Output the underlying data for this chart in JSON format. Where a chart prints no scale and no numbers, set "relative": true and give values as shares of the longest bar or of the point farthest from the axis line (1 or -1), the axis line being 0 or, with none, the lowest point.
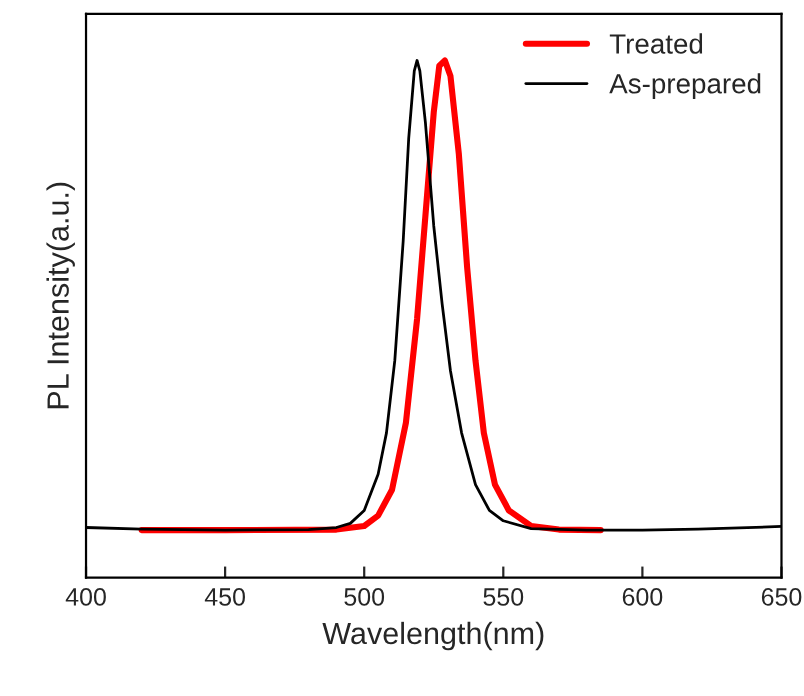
{
  "chart_data": {
    "type": "line",
    "relative": true,
    "xlabel": "Wavelength(nm)",
    "ylabel": "PL Intensity(a.u.)",
    "xlim": [
      400,
      650
    ],
    "xticks": [
      400,
      450,
      500,
      550,
      600,
      650
    ],
    "grid": false,
    "legend": "top right",
    "line_style": "solid",
    "marker": "none",
    "tick_labels": "x",
    "series": [
      {
        "name": "Treated",
        "color": "#ff0000",
        "x": [
          420,
          450,
          490,
          500,
          505,
          510,
          515,
          519,
          522,
          525,
          527,
          529,
          531,
          534,
          537,
          540,
          543,
          547,
          552,
          560,
          570,
          585
        ],
        "values": [
          0.092,
          0.092,
          0.093,
          0.1,
          0.12,
          0.17,
          0.3,
          0.5,
          0.7,
          0.9,
          0.99,
          1.0,
          0.97,
          0.82,
          0.6,
          0.42,
          0.28,
          0.18,
          0.13,
          0.1,
          0.093,
          0.092
        ]
      },
      {
        "name": "As-prepared",
        "color": "#000000",
        "x": [
          400,
          420,
          450,
          480,
          490,
          495,
          500,
          505,
          508,
          511,
          514,
          516,
          518,
          519,
          520,
          522,
          525,
          528,
          531,
          535,
          540,
          545,
          550,
          560,
          580,
          600,
          620,
          650
        ],
        "values": [
          0.097,
          0.094,
          0.092,
          0.093,
          0.097,
          0.105,
          0.13,
          0.2,
          0.28,
          0.42,
          0.65,
          0.85,
          0.98,
          1.0,
          0.98,
          0.88,
          0.68,
          0.53,
          0.4,
          0.28,
          0.18,
          0.13,
          0.11,
          0.095,
          0.092,
          0.092,
          0.094,
          0.099
        ]
      }
    ]
  }
}
